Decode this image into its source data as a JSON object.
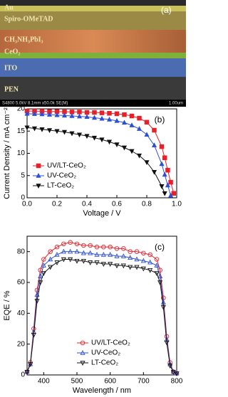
{
  "sem_image": {
    "panel_label": "(a)",
    "layers": [
      "Au",
      "Spiro-OMeTAD",
      "CH₃NH₃PbI₃",
      "CeO₂",
      "ITO",
      "PEN"
    ],
    "footer": "S4800 5.0kV 8.1mm x50.0k SE(M)",
    "scale": "1.00um"
  },
  "chart_data": [
    {
      "type": "line",
      "panel_label": "(b)",
      "xlabel": "Voltage / V",
      "ylabel": "Current Density / mA cm⁻²",
      "x": [
        0,
        0.05,
        0.1,
        0.15,
        0.2,
        0.25,
        0.3,
        0.35,
        0.4,
        0.45,
        0.5,
        0.55,
        0.6,
        0.65,
        0.7,
        0.75,
        0.8,
        0.85,
        0.9,
        0.92,
        0.94,
        0.96,
        0.98,
        1.0
      ],
      "series": [
        {
          "name": "UV/LT-CeO₂",
          "color": "#e8202a",
          "marker": "square",
          "values": [
            19.5,
            19.5,
            19.45,
            19.4,
            19.4,
            19.35,
            19.3,
            19.3,
            19.2,
            19.2,
            19.1,
            19.0,
            18.9,
            18.7,
            18.4,
            17.9,
            17.0,
            15.2,
            11.5,
            9.0,
            6.2,
            3.5,
            1.0,
            null
          ]
        },
        {
          "name": "UV-CeO₂",
          "color": "#2b4fd6",
          "marker": "triangle-up",
          "values": [
            18.9,
            18.85,
            18.8,
            18.7,
            18.6,
            18.5,
            18.4,
            18.3,
            18.2,
            18.0,
            17.8,
            17.6,
            17.3,
            16.9,
            16.3,
            15.5,
            14.2,
            11.8,
            7.6,
            5.2,
            2.8,
            0.5,
            null,
            null
          ]
        },
        {
          "name": "LT-CeO₂",
          "color": "#111111",
          "marker": "triangle-down",
          "values": [
            15.8,
            15.6,
            15.4,
            15.2,
            15.0,
            14.8,
            14.5,
            14.2,
            13.9,
            13.5,
            13.1,
            12.6,
            12.0,
            11.3,
            10.5,
            9.5,
            8.0,
            5.8,
            2.6,
            1.0,
            null,
            null,
            null,
            null
          ]
        }
      ],
      "markers_filled": true,
      "legend": "lower left",
      "xlim": [
        0,
        1.0
      ],
      "ylim": [
        0,
        20
      ],
      "xticks": [
        {
          "value": 0,
          "label": "0.0"
        },
        {
          "value": 0.2,
          "label": "0.2"
        },
        {
          "value": 0.4,
          "label": "0.4"
        },
        {
          "value": 0.6,
          "label": "0.6"
        },
        {
          "value": 0.8,
          "label": "0.8"
        },
        {
          "value": 1.0,
          "label": "1.0"
        }
      ],
      "yticks": [
        0,
        5,
        10,
        15,
        20
      ]
    },
    {
      "type": "line",
      "panel_label": "(c)",
      "xlabel": "Wavelength / nm",
      "ylabel": "EQE / %",
      "x": [
        350,
        360,
        370,
        380,
        390,
        400,
        420,
        440,
        460,
        480,
        500,
        520,
        540,
        560,
        580,
        600,
        620,
        640,
        660,
        680,
        700,
        720,
        740,
        750,
        760,
        770,
        780,
        790,
        800
      ],
      "series": [
        {
          "name": "UV/LT-CeO₂",
          "color": "#e8202a",
          "marker": "circle",
          "values": [
            2,
            8,
            30,
            55,
            68,
            75,
            80,
            83,
            85,
            86,
            85,
            84,
            84,
            83,
            83,
            83,
            82,
            82,
            80,
            80,
            79,
            78,
            75,
            68,
            50,
            25,
            8,
            2,
            1
          ]
        },
        {
          "name": "UV-CeO₂",
          "color": "#2b4fd6",
          "marker": "triangle-up",
          "values": [
            2,
            7,
            28,
            52,
            64,
            71,
            75,
            78,
            80,
            80,
            80,
            79,
            79,
            78,
            78,
            78,
            77,
            77,
            76,
            75,
            74,
            73,
            71,
            64,
            47,
            23,
            7,
            2,
            1
          ]
        },
        {
          "name": "LT-CeO₂",
          "color": "#111111",
          "marker": "triangle-down",
          "values": [
            2,
            7,
            26,
            48,
            60,
            66,
            70,
            73,
            75,
            75,
            74,
            74,
            73,
            73,
            72,
            72,
            71,
            71,
            70,
            70,
            69,
            68,
            66,
            60,
            44,
            21,
            6,
            2,
            1
          ]
        }
      ],
      "markers_filled": false,
      "legend": "lower center",
      "xlim": [
        350,
        800
      ],
      "ylim": [
        0,
        90
      ],
      "xticks": [
        400,
        500,
        600,
        700,
        800
      ],
      "yticks": [
        0,
        20,
        40,
        60,
        80
      ]
    }
  ]
}
